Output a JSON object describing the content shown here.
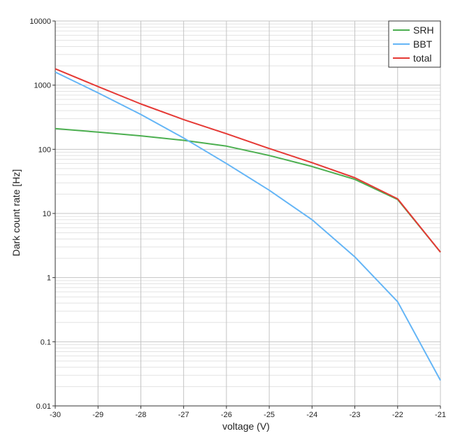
{
  "chart_data": {
    "type": "line",
    "title": "",
    "xlabel": "voltage (V)",
    "ylabel": "Dark count rate [Hz]",
    "xlim": [
      -30,
      -21
    ],
    "ylim": [
      0.01,
      10000
    ],
    "yscale": "log",
    "grid": true,
    "legend_position": "top-right",
    "x_ticks": [
      {
        "value": -30,
        "label": "-30"
      },
      {
        "value": -29,
        "label": "-29"
      },
      {
        "value": -28,
        "label": "-28"
      },
      {
        "value": -27,
        "label": "-27"
      },
      {
        "value": -26,
        "label": "-26"
      },
      {
        "value": -25,
        "label": "-25"
      },
      {
        "value": -24,
        "label": "-24"
      },
      {
        "value": -23,
        "label": "-23"
      },
      {
        "value": -22,
        "label": "-22"
      },
      {
        "value": -21,
        "label": "-21"
      }
    ],
    "y_ticks": [
      {
        "value": 0.01,
        "label": "0.01"
      },
      {
        "value": 0.1,
        "label": "0.1"
      },
      {
        "value": 1,
        "label": "1"
      },
      {
        "value": 10,
        "label": "10"
      },
      {
        "value": 100,
        "label": "100"
      },
      {
        "value": 1000,
        "label": "1000"
      },
      {
        "value": 10000,
        "label": "10000"
      }
    ],
    "series": [
      {
        "name": "SRH",
        "color": "#4caf50",
        "x": [
          -30,
          -29,
          -28,
          -27,
          -26,
          -25,
          -24,
          -23,
          -22,
          -21
        ],
        "y": [
          210,
          185,
          162,
          138,
          112,
          80,
          54,
          34,
          16.5,
          2.5
        ]
      },
      {
        "name": "BBT",
        "color": "#64b5f6",
        "x": [
          -30,
          -29,
          -28,
          -27,
          -26,
          -25,
          -24,
          -23,
          -22,
          -21
        ],
        "y": [
          1600,
          760,
          350,
          150,
          60,
          23,
          8,
          2.1,
          0.42,
          0.025
        ]
      },
      {
        "name": "total",
        "color": "#e53935",
        "x": [
          -30,
          -29,
          -28,
          -27,
          -26,
          -25,
          -24,
          -23,
          -22,
          -21
        ],
        "y": [
          1800,
          950,
          510,
          290,
          175,
          103,
          62,
          36,
          16.9,
          2.5
        ]
      }
    ]
  }
}
